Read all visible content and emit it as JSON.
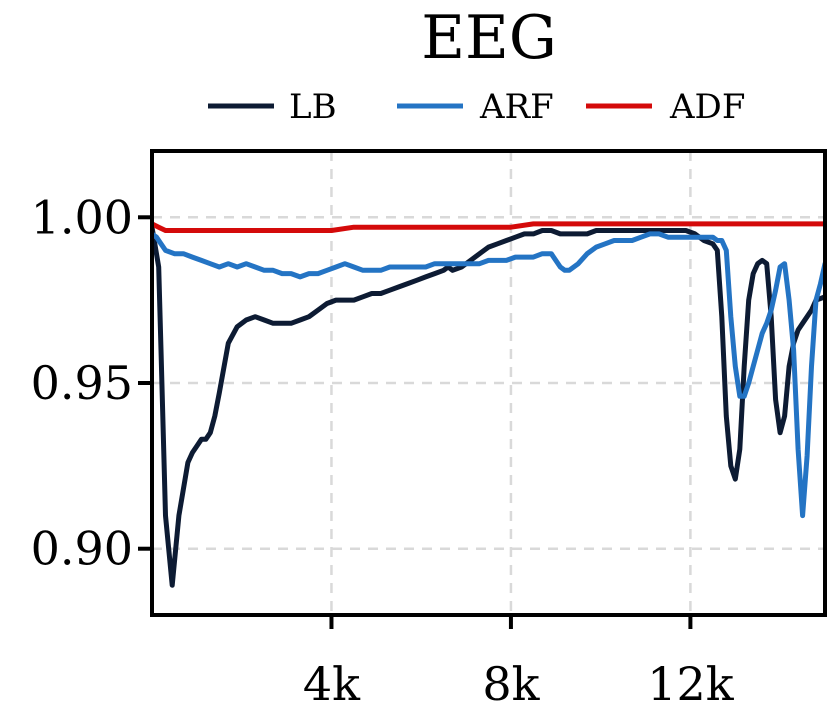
{
  "chart_data": {
    "type": "line",
    "title": "EEG",
    "xlabel": "",
    "ylabel": "",
    "xlim": [
      0,
      15000
    ],
    "ylim": [
      0.88,
      1.02
    ],
    "grid": true,
    "legend_position": "top",
    "x_ticks": [
      {
        "value": 4000,
        "label": "4k"
      },
      {
        "value": 8000,
        "label": "8k"
      },
      {
        "value": 12000,
        "label": "12k"
      }
    ],
    "y_ticks": [
      {
        "value": 0.9,
        "label": "0.90"
      },
      {
        "value": 0.95,
        "label": "0.95"
      },
      {
        "value": 1.0,
        "label": "1.00"
      }
    ],
    "series": [
      {
        "name": "LB",
        "color": "#0d1b33",
        "x": [
          0,
          150,
          200,
          300,
          450,
          600,
          700,
          800,
          900,
          1000,
          1100,
          1200,
          1300,
          1400,
          1500,
          1700,
          1900,
          2100,
          2300,
          2500,
          2700,
          2900,
          3100,
          3300,
          3500,
          3700,
          3900,
          4100,
          4300,
          4500,
          4700,
          4900,
          5100,
          5300,
          5500,
          5700,
          5900,
          6100,
          6300,
          6500,
          6600,
          6700,
          6900,
          7100,
          7300,
          7500,
          7700,
          7900,
          8100,
          8300,
          8500,
          8700,
          8900,
          9100,
          9300,
          9500,
          9700,
          9900,
          10100,
          10300,
          10500,
          10700,
          10900,
          11100,
          11300,
          11500,
          11700,
          11900,
          12100,
          12300,
          12500,
          12600,
          12700,
          12800,
          12900,
          13000,
          13100,
          13200,
          13300,
          13400,
          13500,
          13600,
          13700,
          13800,
          13900,
          14000,
          14100,
          14200,
          14300,
          14400,
          14500,
          14600,
          14700,
          14800,
          15000
        ],
        "y": [
          0.997,
          0.985,
          0.96,
          0.91,
          0.889,
          0.91,
          0.918,
          0.926,
          0.929,
          0.931,
          0.933,
          0.933,
          0.935,
          0.94,
          0.947,
          0.962,
          0.967,
          0.969,
          0.97,
          0.969,
          0.968,
          0.968,
          0.968,
          0.969,
          0.97,
          0.972,
          0.974,
          0.975,
          0.975,
          0.975,
          0.976,
          0.977,
          0.977,
          0.978,
          0.979,
          0.98,
          0.981,
          0.982,
          0.983,
          0.984,
          0.985,
          0.984,
          0.985,
          0.987,
          0.989,
          0.991,
          0.992,
          0.993,
          0.994,
          0.995,
          0.995,
          0.996,
          0.996,
          0.995,
          0.995,
          0.995,
          0.995,
          0.996,
          0.996,
          0.996,
          0.996,
          0.996,
          0.996,
          0.996,
          0.996,
          0.996,
          0.996,
          0.996,
          0.995,
          0.993,
          0.992,
          0.99,
          0.97,
          0.94,
          0.925,
          0.921,
          0.93,
          0.955,
          0.975,
          0.983,
          0.986,
          0.987,
          0.986,
          0.97,
          0.945,
          0.935,
          0.94,
          0.955,
          0.962,
          0.966,
          0.968,
          0.97,
          0.972,
          0.975,
          0.976
        ]
      },
      {
        "name": "ARF",
        "color": "#2474c4",
        "x": [
          0,
          100,
          200,
          300,
          500,
          700,
          900,
          1100,
          1300,
          1500,
          1700,
          1900,
          2100,
          2300,
          2500,
          2700,
          2900,
          3100,
          3300,
          3500,
          3700,
          3900,
          4100,
          4300,
          4500,
          4700,
          4900,
          5100,
          5300,
          5500,
          5700,
          5900,
          6100,
          6300,
          6500,
          6700,
          6900,
          7100,
          7300,
          7500,
          7700,
          7900,
          8100,
          8300,
          8500,
          8700,
          8900,
          9000,
          9100,
          9200,
          9300,
          9500,
          9700,
          9900,
          10100,
          10300,
          10500,
          10700,
          10900,
          11100,
          11300,
          11500,
          11700,
          11900,
          12100,
          12300,
          12500,
          12600,
          12700,
          12800,
          12900,
          13000,
          13100,
          13200,
          13300,
          13400,
          13500,
          13600,
          13700,
          13800,
          13900,
          14000,
          14100,
          14200,
          14300,
          14400,
          14500,
          14600,
          14700,
          14800,
          14900,
          15000
        ],
        "y": [
          0.995,
          0.994,
          0.992,
          0.99,
          0.989,
          0.989,
          0.988,
          0.987,
          0.986,
          0.985,
          0.986,
          0.985,
          0.986,
          0.985,
          0.984,
          0.984,
          0.983,
          0.983,
          0.982,
          0.983,
          0.983,
          0.984,
          0.985,
          0.986,
          0.985,
          0.984,
          0.984,
          0.984,
          0.985,
          0.985,
          0.985,
          0.985,
          0.985,
          0.986,
          0.986,
          0.986,
          0.986,
          0.986,
          0.986,
          0.987,
          0.987,
          0.987,
          0.988,
          0.988,
          0.988,
          0.989,
          0.989,
          0.987,
          0.985,
          0.984,
          0.984,
          0.986,
          0.989,
          0.991,
          0.992,
          0.993,
          0.993,
          0.993,
          0.994,
          0.995,
          0.995,
          0.994,
          0.994,
          0.994,
          0.994,
          0.994,
          0.994,
          0.993,
          0.993,
          0.99,
          0.97,
          0.955,
          0.946,
          0.946,
          0.95,
          0.955,
          0.96,
          0.965,
          0.968,
          0.972,
          0.978,
          0.985,
          0.986,
          0.975,
          0.96,
          0.93,
          0.91,
          0.928,
          0.955,
          0.975,
          0.98,
          0.986
        ]
      },
      {
        "name": "ADF",
        "color": "#d40a0a",
        "x": [
          0,
          150,
          300,
          500,
          800,
          1100,
          1400,
          1700,
          2000,
          2300,
          2600,
          2900,
          3200,
          3500,
          4000,
          4500,
          5000,
          5500,
          6000,
          6500,
          7000,
          7500,
          8000,
          8500,
          9000,
          9500,
          10000,
          10500,
          11000,
          11500,
          12000,
          12500,
          13000,
          13500,
          14000,
          14500,
          15000
        ],
        "y": [
          0.998,
          0.997,
          0.996,
          0.996,
          0.996,
          0.996,
          0.996,
          0.996,
          0.996,
          0.996,
          0.996,
          0.996,
          0.996,
          0.996,
          0.996,
          0.997,
          0.997,
          0.997,
          0.997,
          0.997,
          0.997,
          0.997,
          0.997,
          0.998,
          0.998,
          0.998,
          0.998,
          0.998,
          0.998,
          0.998,
          0.998,
          0.998,
          0.998,
          0.998,
          0.998,
          0.998,
          0.998
        ]
      }
    ]
  }
}
